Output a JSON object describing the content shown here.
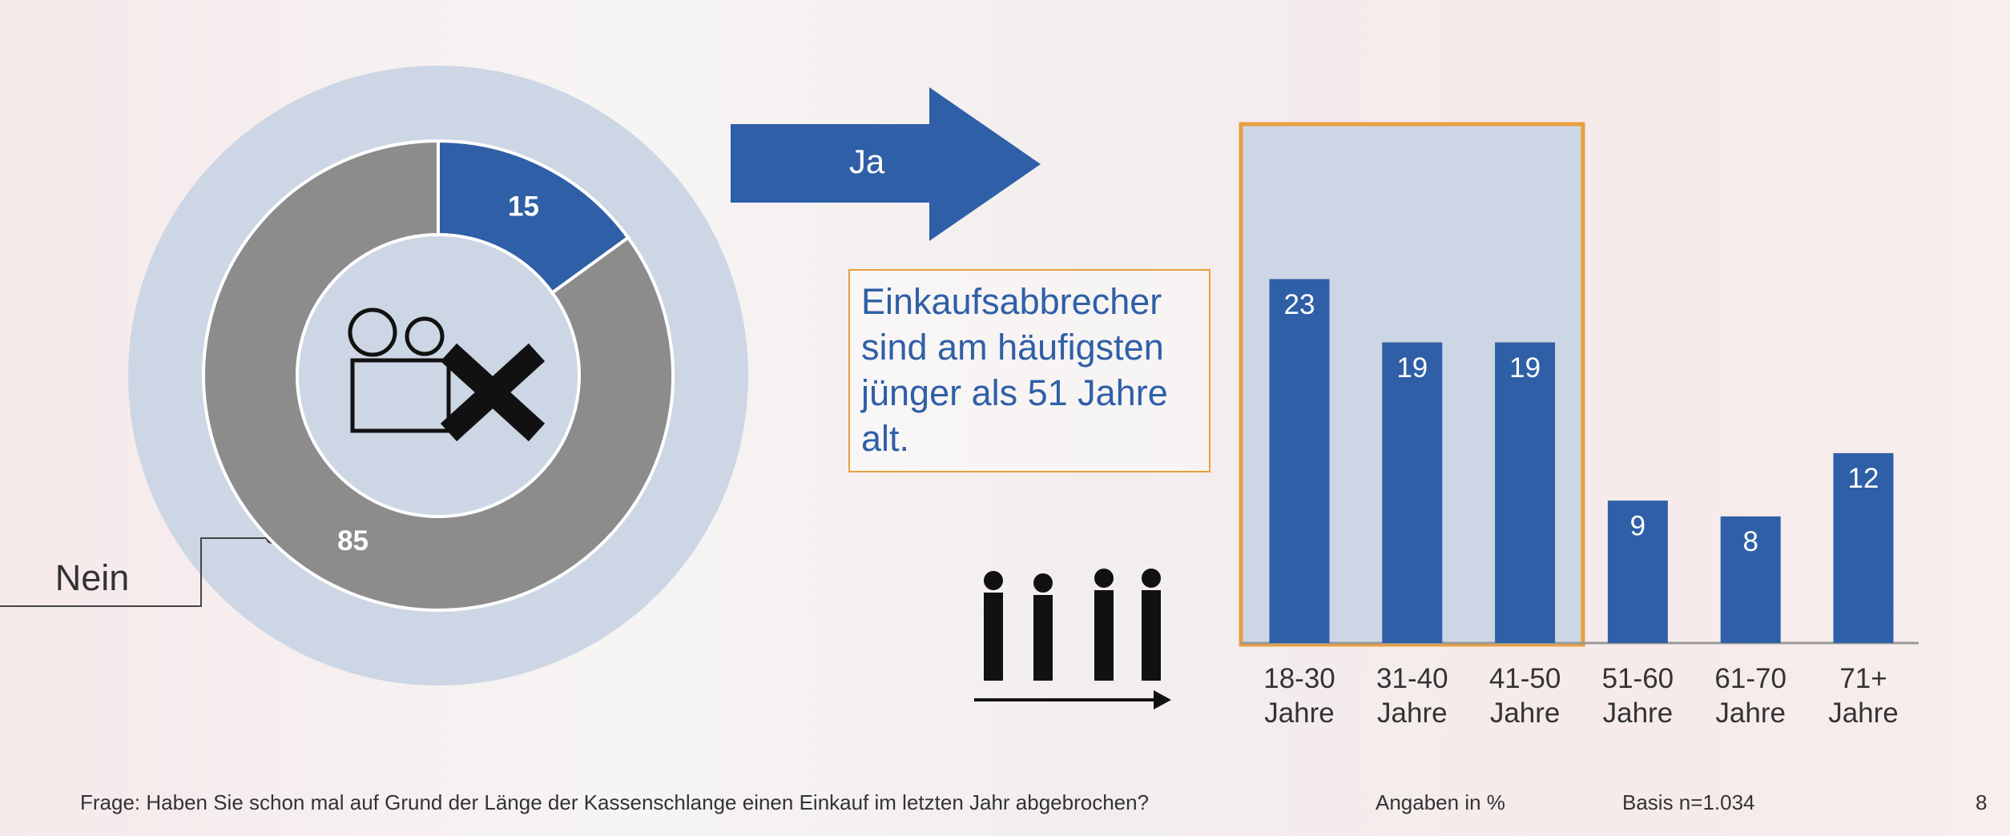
{
  "chart_data": [
    {
      "type": "donut",
      "categories": [
        "Ja",
        "Nein"
      ],
      "values": [
        15,
        85
      ],
      "colors": [
        "#2f5fa7",
        "#8c8c8c"
      ]
    },
    {
      "type": "bar",
      "categories": [
        "18-30 Jahre",
        "31-40 Jahre",
        "41-50 Jahre",
        "51-60 Jahre",
        "61-70 Jahre",
        "71+ Jahre"
      ],
      "values": [
        23,
        19,
        19,
        9,
        8,
        12
      ],
      "color": "#2f5fa7",
      "annotation": "Einkaufsabbrecher sind am häufigsten jünger als 51 Jahre alt."
    }
  ],
  "footer": {
    "question": "Frage: Haben Sie schon mal auf Grund der Länge der Kassenschlange einen Einkauf im letzten Jahr abgebrochen?",
    "unit": "Angaben in %",
    "basis": "Basis n=1.034",
    "page": "8"
  }
}
